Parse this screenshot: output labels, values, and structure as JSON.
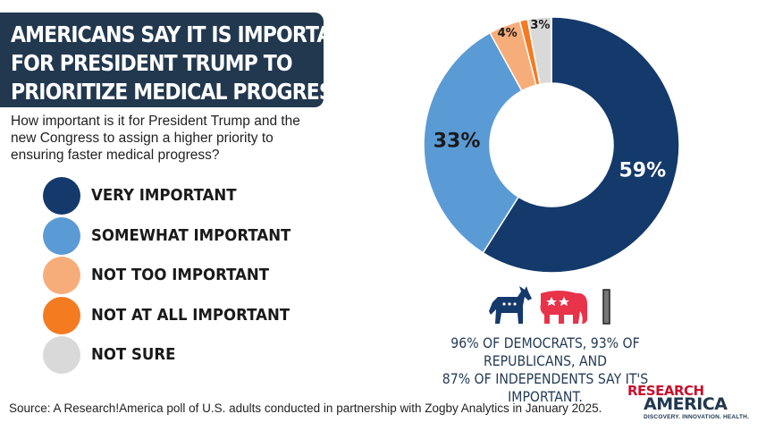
{
  "title": {
    "line1": "AMERICANS SAY IT IS IMPORTANT",
    "line2": "FOR PRESIDENT TRUMP TO",
    "line3": "PRIORITIZE MEDICAL PROGRESS"
  },
  "question": "How important is it for President Trump and the new Congress to assign a higher priority to ensuring faster medical progress?",
  "chart_data": {
    "type": "pie",
    "donut": true,
    "categories": [
      "VERY IMPORTANT",
      "SOMEWHAT IMPORTANT",
      "NOT TOO IMPORTANT",
      "NOT AT ALL IMPORTANT",
      "NOT SURE"
    ],
    "values": [
      59,
      33,
      4,
      1,
      3
    ],
    "data_labels": [
      "59%",
      "33%",
      "4%",
      "",
      "3%"
    ],
    "colors": [
      "#14396b",
      "#5b9bd5",
      "#f7ad7a",
      "#f47b20",
      "#d9d9d9"
    ],
    "legend_position": "left"
  },
  "note": {
    "line1": "96% OF DEMOCRATS, 93% OF REPUBLICANS, AND",
    "line2": "87% OF INDEPENDENTS SAY IT'S IMPORTANT."
  },
  "icons": [
    "donkey-icon",
    "elephant-icon",
    "independent-bar-icon"
  ],
  "source": "Source:  A Research!America poll of U.S. adults conducted in partnership with Zogby Analytics in January 2025.",
  "logo": {
    "line1": "RESEARCH",
    "line2": "AMERICA",
    "tagline": "DISCOVERY. INNOVATION. HEALTH."
  }
}
